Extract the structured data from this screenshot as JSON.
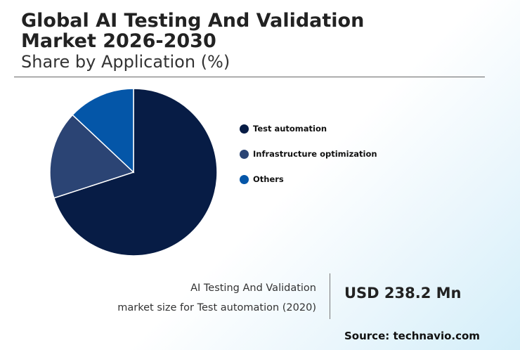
{
  "header": {
    "title_line1": "Global AI Testing And Validation",
    "title_line2": "Market 2026-2030",
    "subtitle": "Share by Application (%)"
  },
  "chart_data": {
    "type": "pie",
    "title": "Global AI Testing And Validation Market 2026-2030",
    "subtitle": "Share by Application (%)",
    "categories": [
      "Test automation",
      "Infrastructure optimization",
      "Others"
    ],
    "values": [
      70,
      17,
      13
    ],
    "colors": [
      "#071c45",
      "#2b4474",
      "#0456a8"
    ],
    "start_angle_deg": 0,
    "direction": "clockwise",
    "legend_position": "right"
  },
  "footer": {
    "text_line1": "AI Testing And Validation",
    "text_line2": "market size for Test automation (2020)",
    "value": "USD 238.2 Mn",
    "source": "Source: technavio.com"
  }
}
